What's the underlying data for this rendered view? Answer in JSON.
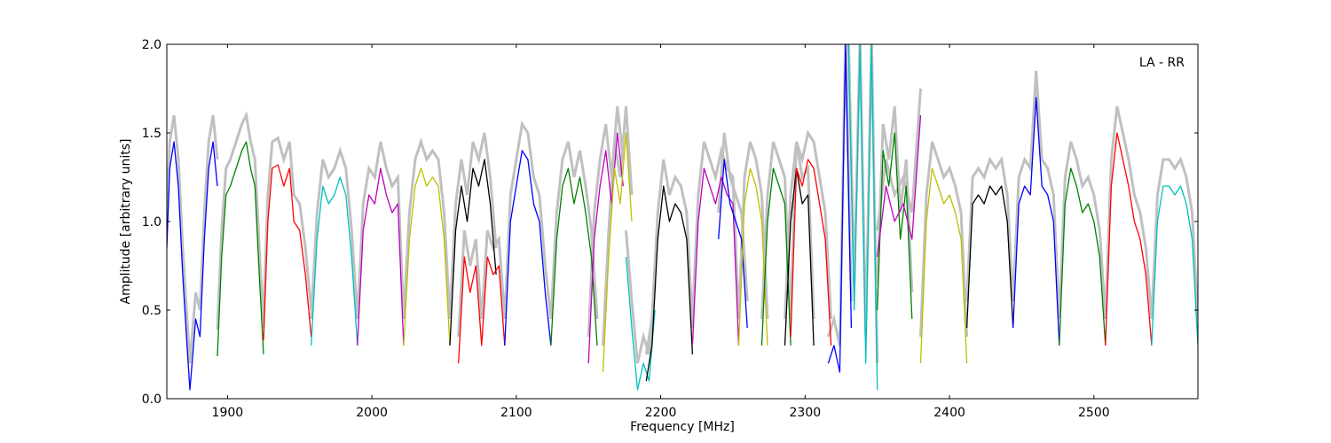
{
  "chart_data": {
    "type": "line",
    "title": "",
    "xlabel": "Frequency [MHz]",
    "ylabel": "Amplitude [arbitrary units]",
    "xlim": [
      1858,
      2572
    ],
    "ylim": [
      0.0,
      2.0
    ],
    "xticks": [
      1900,
      2000,
      2100,
      2200,
      2300,
      2400,
      2500
    ],
    "yticks": [
      0.0,
      0.5,
      1.0,
      1.5,
      2.0
    ],
    "ytick_labels": [
      "0.0",
      "0.5",
      "1.0",
      "1.5",
      "2.0"
    ],
    "grid": false,
    "legend": "none",
    "annotation": "LA - RR",
    "background_color": "#c0c0c0",
    "series": [
      {
        "color": "#0000ff",
        "x": [
          1858,
          1860,
          1863,
          1866,
          1869,
          1872,
          1874,
          1876,
          1878,
          1881,
          1884,
          1887,
          1890,
          1893
        ],
        "y": [
          0.85,
          1.3,
          1.45,
          1.2,
          0.7,
          0.3,
          0.05,
          0.25,
          0.45,
          0.35,
          0.9,
          1.3,
          1.45,
          1.2
        ]
      },
      {
        "color": "#008000",
        "x": [
          1893,
          1896,
          1899,
          1902,
          1906,
          1910,
          1913,
          1916,
          1919,
          1922,
          1925
        ],
        "y": [
          0.24,
          0.8,
          1.15,
          1.2,
          1.3,
          1.4,
          1.45,
          1.3,
          1.2,
          0.7,
          0.25
        ]
      },
      {
        "color": "#ff0000",
        "x": [
          1925,
          1928,
          1931,
          1935,
          1939,
          1943,
          1946,
          1950,
          1954,
          1958
        ],
        "y": [
          0.33,
          1.0,
          1.3,
          1.32,
          1.2,
          1.3,
          1.0,
          0.95,
          0.7,
          0.35
        ]
      },
      {
        "color": "#00bfbf",
        "x": [
          1958,
          1962,
          1966,
          1970,
          1974,
          1978,
          1982,
          1986,
          1990
        ],
        "y": [
          0.3,
          0.9,
          1.2,
          1.1,
          1.15,
          1.25,
          1.15,
          0.8,
          0.3
        ]
      },
      {
        "color": "#bf00bf",
        "x": [
          1990,
          1994,
          1998,
          2002,
          2006,
          2010,
          2014,
          2018,
          2022
        ],
        "y": [
          0.3,
          0.95,
          1.15,
          1.1,
          1.3,
          1.15,
          1.05,
          1.1,
          0.3
        ]
      },
      {
        "color": "#bfbf00",
        "x": [
          2022,
          2026,
          2030,
          2034,
          2038,
          2042,
          2046,
          2050,
          2054
        ],
        "y": [
          0.3,
          0.9,
          1.2,
          1.3,
          1.2,
          1.25,
          1.2,
          0.9,
          0.3
        ]
      },
      {
        "color": "#000000",
        "x": [
          2054,
          2058,
          2062,
          2066,
          2070,
          2074,
          2078,
          2082,
          2086
        ],
        "y": [
          0.3,
          0.95,
          1.2,
          1.0,
          1.3,
          1.2,
          1.35,
          1.1,
          0.7
        ]
      },
      {
        "color": "#ff0000",
        "x": [
          2060,
          2064,
          2068,
          2072,
          2076,
          2080,
          2084,
          2088,
          2092
        ],
        "y": [
          0.2,
          0.8,
          0.6,
          0.75,
          0.3,
          0.8,
          0.7,
          0.75,
          0.3
        ]
      },
      {
        "color": "#0000ff",
        "x": [
          2092,
          2096,
          2100,
          2104,
          2108,
          2112,
          2116,
          2120,
          2124
        ],
        "y": [
          0.3,
          1.0,
          1.2,
          1.4,
          1.35,
          1.1,
          1.0,
          0.6,
          0.3
        ]
      },
      {
        "color": "#008000",
        "x": [
          2124,
          2128,
          2132,
          2136,
          2140,
          2144,
          2148,
          2152,
          2156
        ],
        "y": [
          0.3,
          0.9,
          1.2,
          1.3,
          1.1,
          1.25,
          1.05,
          0.8,
          0.3
        ]
      },
      {
        "color": "#bf00bf",
        "x": [
          2150,
          2154,
          2158,
          2162,
          2166,
          2170,
          2174
        ],
        "y": [
          0.2,
          0.9,
          1.2,
          1.4,
          1.1,
          1.5,
          1.2
        ]
      },
      {
        "color": "#bfbf00",
        "x": [
          2160,
          2164,
          2168,
          2172,
          2176,
          2180
        ],
        "y": [
          0.15,
          0.8,
          1.3,
          1.1,
          1.5,
          1.0
        ]
      },
      {
        "color": "#00bfbf",
        "x": [
          2176,
          2180,
          2184,
          2188,
          2192,
          2196
        ],
        "y": [
          0.8,
          0.4,
          0.05,
          0.2,
          0.1,
          0.5
        ]
      },
      {
        "color": "#000000",
        "x": [
          2190,
          2194,
          2198,
          2202,
          2206,
          2210,
          2214,
          2218,
          2222
        ],
        "y": [
          0.1,
          0.3,
          0.9,
          1.2,
          1.0,
          1.1,
          1.05,
          0.9,
          0.25
        ]
      },
      {
        "color": "#bf00bf",
        "x": [
          2222,
          2226,
          2230,
          2234,
          2238,
          2242,
          2246,
          2250,
          2254
        ],
        "y": [
          0.3,
          1.0,
          1.3,
          1.2,
          1.1,
          1.25,
          1.15,
          1.1,
          0.3
        ]
      },
      {
        "color": "#0000ff",
        "x": [
          2240,
          2244,
          2248,
          2252,
          2256,
          2260
        ],
        "y": [
          0.9,
          1.35,
          1.1,
          1.0,
          0.9,
          0.4
        ]
      },
      {
        "color": "#bfbf00",
        "x": [
          2254,
          2258,
          2262,
          2266,
          2270,
          2274
        ],
        "y": [
          0.3,
          1.1,
          1.3,
          1.2,
          1.0,
          0.3
        ]
      },
      {
        "color": "#008000",
        "x": [
          2270,
          2274,
          2278,
          2282,
          2286,
          2290
        ],
        "y": [
          0.3,
          1.0,
          1.3,
          1.2,
          1.1,
          0.3
        ]
      },
      {
        "color": "#000000",
        "x": [
          2286,
          2290,
          2294,
          2298,
          2302,
          2306
        ],
        "y": [
          0.3,
          1.0,
          1.3,
          1.1,
          1.15,
          0.3
        ]
      },
      {
        "color": "#ff0000",
        "x": [
          2290,
          2294,
          2298,
          2302,
          2306,
          2310,
          2314,
          2318
        ],
        "y": [
          0.35,
          1.3,
          1.2,
          1.35,
          1.3,
          1.1,
          0.9,
          0.3
        ]
      },
      {
        "color": "#0000ff",
        "x": [
          2316,
          2320,
          2324,
          2328,
          2332
        ],
        "y": [
          0.2,
          0.3,
          0.15,
          2.0,
          0.4
        ]
      },
      {
        "color": "#00bfbf",
        "x": [
          2330,
          2334,
          2338,
          2342,
          2346,
          2350
        ],
        "y": [
          2.0,
          0.5,
          2.0,
          0.2,
          2.0,
          0.05
        ]
      },
      {
        "color": "#008000",
        "x": [
          2350,
          2354,
          2358,
          2362,
          2366,
          2370,
          2374
        ],
        "y": [
          0.5,
          1.4,
          1.2,
          1.5,
          0.9,
          1.2,
          0.45
        ]
      },
      {
        "color": "#bf00bf",
        "x": [
          2350,
          2356,
          2362,
          2368,
          2374,
          2380
        ],
        "y": [
          0.8,
          1.2,
          1.0,
          1.1,
          0.9,
          1.6
        ]
      },
      {
        "color": "#bfbf00",
        "x": [
          2380,
          2384,
          2388,
          2392,
          2396,
          2400,
          2404,
          2408,
          2412
        ],
        "y": [
          0.2,
          1.0,
          1.3,
          1.2,
          1.1,
          1.15,
          1.05,
          0.9,
          0.2
        ]
      },
      {
        "color": "#000000",
        "x": [
          2412,
          2416,
          2420,
          2424,
          2428,
          2432,
          2436,
          2440,
          2444
        ],
        "y": [
          0.4,
          1.1,
          1.15,
          1.1,
          1.2,
          1.15,
          1.2,
          1.0,
          0.4
        ]
      },
      {
        "color": "#0000ff",
        "x": [
          2444,
          2448,
          2452,
          2456,
          2460,
          2464,
          2468,
          2472,
          2476
        ],
        "y": [
          0.4,
          1.1,
          1.2,
          1.15,
          1.7,
          1.2,
          1.15,
          1.0,
          0.3
        ]
      },
      {
        "color": "#008000",
        "x": [
          2476,
          2480,
          2484,
          2488,
          2492,
          2496,
          2500,
          2504,
          2508
        ],
        "y": [
          0.3,
          1.1,
          1.3,
          1.2,
          1.05,
          1.1,
          1.0,
          0.8,
          0.3
        ]
      },
      {
        "color": "#ff0000",
        "x": [
          2508,
          2512,
          2516,
          2520,
          2524,
          2528,
          2532,
          2536,
          2540
        ],
        "y": [
          0.3,
          1.2,
          1.5,
          1.35,
          1.2,
          1.0,
          0.9,
          0.7,
          0.3
        ]
      },
      {
        "color": "#00bfbf",
        "x": [
          2540,
          2544,
          2548,
          2552,
          2556,
          2560,
          2564,
          2568,
          2572
        ],
        "y": [
          0.3,
          1.0,
          1.2,
          1.2,
          1.15,
          1.2,
          1.1,
          0.9,
          0.3
        ]
      }
    ]
  }
}
